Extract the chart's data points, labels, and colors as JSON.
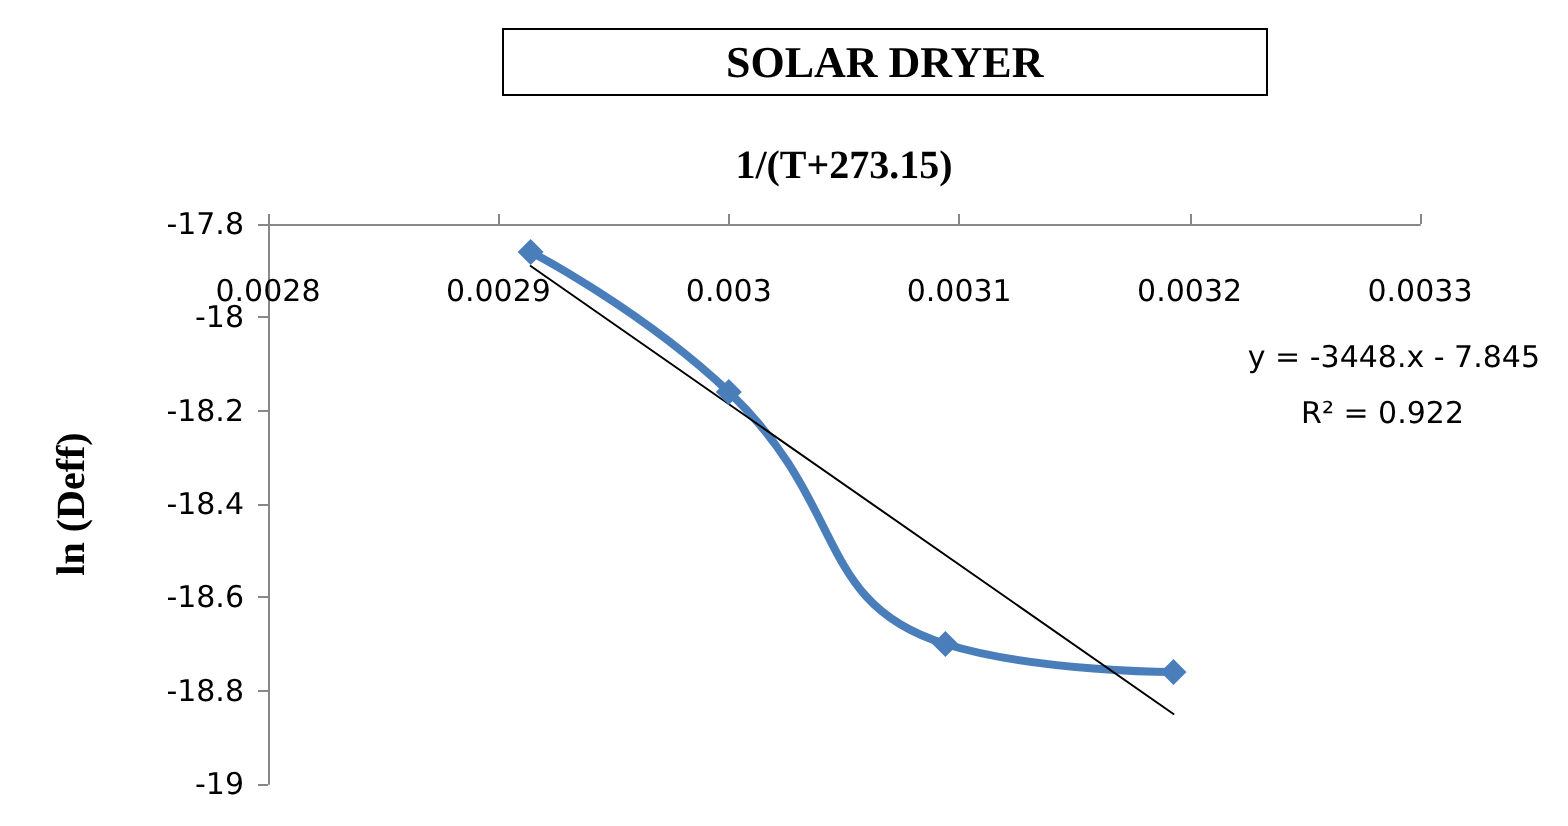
{
  "chart_data": {
    "type": "line",
    "title": "SOLAR DRYER",
    "xlabel": "1/(T+273.15)",
    "ylabel": "ln (Deff)",
    "series": [
      {
        "color": "#4a7ebb",
        "x": [
          0.002914,
          0.003,
          0.003094,
          0.003193
        ],
        "values": [
          -17.86,
          -18.16,
          -18.7,
          -18.76
        ],
        "marker": "diamond"
      },
      {
        "color": "#000000",
        "x": [
          0.002914,
          0.003193
        ],
        "values": [
          -17.89,
          -18.85
        ],
        "marker": "none"
      }
    ],
    "annotations": [
      "y = -3448.x - 7.845",
      "R² = 0.922"
    ],
    "xlim": [
      0.0028,
      0.0033
    ],
    "xticks": [
      0.0028,
      0.0029,
      0.003,
      0.0031,
      0.0032,
      0.0033
    ],
    "ylim": [
      -19,
      -17.8
    ],
    "yticks": [
      -19,
      -18.8,
      -18.6,
      -18.4,
      -18.2,
      -18,
      -17.8
    ],
    "grid": false
  }
}
